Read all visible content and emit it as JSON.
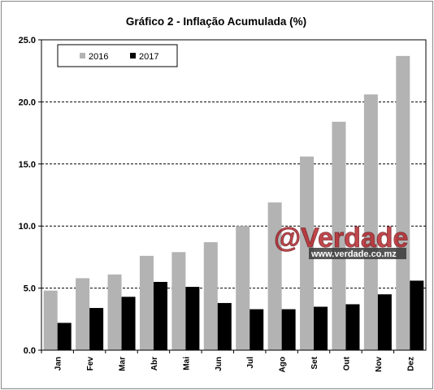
{
  "chart_data": {
    "type": "bar",
    "title": "Gráfico 2 - Inflação Acumulada (%)",
    "xlabel": "",
    "ylabel": "",
    "categories": [
      "Jan",
      "Fev",
      "Mar",
      "Abr",
      "Mai",
      "Jun",
      "Jul",
      "Ago",
      "Set",
      "Out",
      "Nov",
      "Dez"
    ],
    "series": [
      {
        "name": "2016",
        "color": "#b3b3b3",
        "values": [
          4.8,
          5.8,
          6.1,
          7.6,
          7.9,
          8.7,
          10.0,
          11.9,
          15.6,
          18.4,
          20.6,
          23.7
        ]
      },
      {
        "name": "2017",
        "color": "#000000",
        "values": [
          2.2,
          3.4,
          4.3,
          5.5,
          5.1,
          3.8,
          3.3,
          3.3,
          3.5,
          3.7,
          4.5,
          5.6
        ]
      }
    ],
    "ylim": [
      0,
      25
    ],
    "yticks": [
      "0.0",
      "5.0",
      "10.0",
      "15.0",
      "20.0",
      "25.0"
    ],
    "ytick_values": [
      0,
      5,
      10,
      15,
      20,
      25
    ],
    "grid": "horizontal dashed",
    "legend": "top-left"
  },
  "watermark": {
    "brand": "@Verdade",
    "url": "www.verdade.co.mz"
  }
}
